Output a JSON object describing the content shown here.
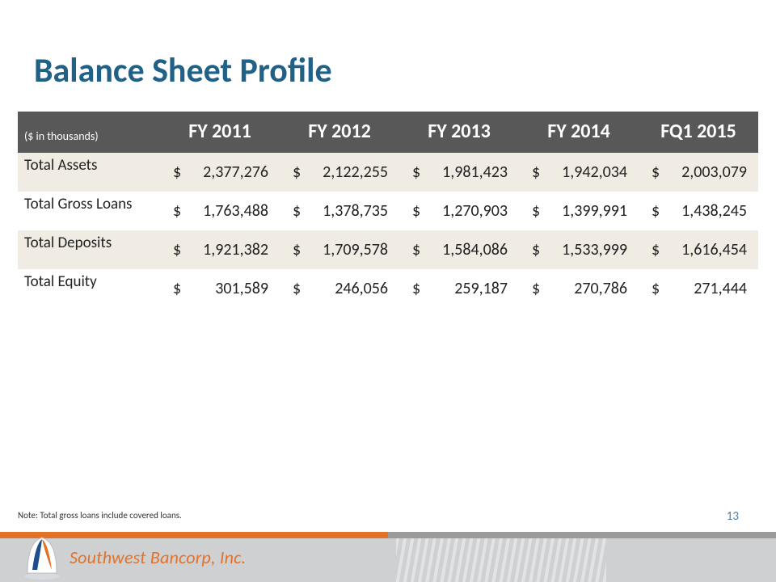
{
  "title": "Balance Sheet Profile",
  "unitsLabel": "($ in thousands)",
  "columns": [
    "FY 2011",
    "FY 2012",
    "FY 2013",
    "FY 2014",
    "FQ1 2015"
  ],
  "rows": [
    {
      "label": "Total Assets",
      "values": [
        "2,377,276",
        "2,122,255",
        "1,981,423",
        "1,942,034",
        "2,003,079"
      ]
    },
    {
      "label": "Total Gross Loans",
      "values": [
        "1,763,488",
        "1,378,735",
        "1,270,903",
        "1,399,991",
        "1,438,245"
      ]
    },
    {
      "label": "Total Deposits",
      "values": [
        "1,921,382",
        "1,709,578",
        "1,584,086",
        "1,533,999",
        "1,616,454"
      ]
    },
    {
      "label": "Total Equity",
      "values": [
        "301,589",
        "246,056",
        "259,187",
        "270,786",
        "271,444"
      ]
    }
  ],
  "note": "Note: Total gross loans include covered loans.",
  "pageNumber": "13",
  "company": "Southwest Bancorp, Inc.",
  "style": {
    "title_color": "#1f6187",
    "header_bg": "#585858",
    "header_fg": "#ffffff",
    "alt_row_bg": "#f0ece4",
    "row_bg": "#ffffff",
    "accent_orange": "#e27228",
    "accent_grey": "#9b9b9b",
    "footer_bg": "#cfd0d2",
    "title_fontsize": 42,
    "header_fontsize": 24,
    "cell_fontsize": 20,
    "note_fontsize": 11,
    "currency_symbol": "$"
  }
}
